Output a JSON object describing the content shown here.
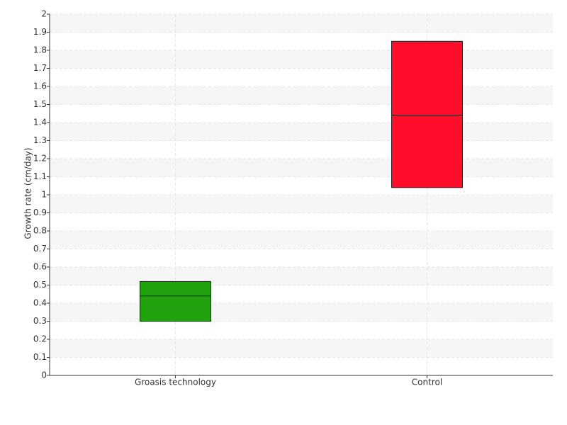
{
  "chart_data": {
    "type": "box",
    "y_label": "Growth rate (cm/day)",
    "categories": [
      "Groasis technology",
      "Control"
    ],
    "low": [
      0.3,
      1.04
    ],
    "median": [
      0.44,
      1.44
    ],
    "high": [
      0.52,
      1.85
    ],
    "colors": [
      "#21a10d",
      "#ff0d2a"
    ],
    "ylim": [
      0,
      2
    ],
    "yticks": [
      0,
      0.1,
      0.2,
      0.3,
      0.4,
      0.5,
      0.6,
      0.7,
      0.8,
      0.9,
      1,
      1.1,
      1.2,
      1.3,
      1.4,
      1.5,
      1.6,
      1.7,
      1.8,
      1.9,
      2
    ],
    "grid": true
  }
}
